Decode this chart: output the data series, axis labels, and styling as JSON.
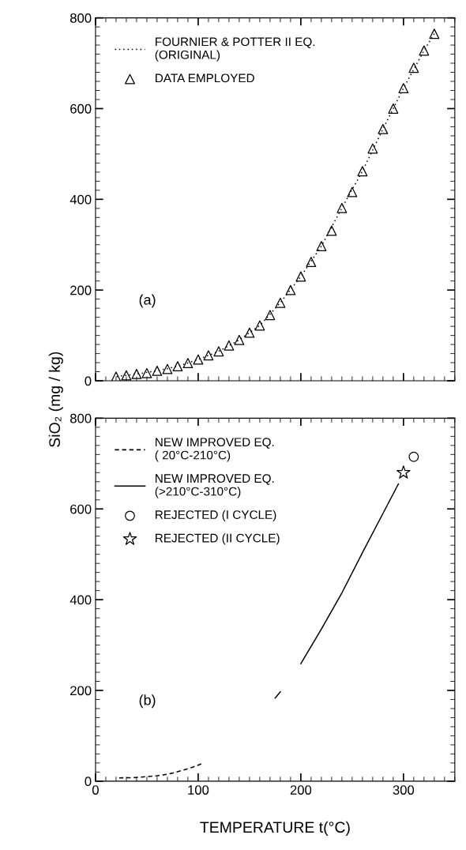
{
  "chart_data": [
    {
      "type": "line",
      "ylabel": "SiO₂ (mg / kg)",
      "xlim": [
        0,
        350
      ],
      "ylim": [
        0,
        800
      ],
      "xticks": [
        0,
        100,
        200,
        300
      ],
      "yticks": [
        0,
        200,
        400,
        600,
        800
      ],
      "tick_labels": "y",
      "legend": "top left",
      "grid": false,
      "annotations": [
        "(a)"
      ],
      "series": [
        {
          "name": "FOURNIER & POTTER II EQ.\n(ORIGINAL)",
          "color": "#000000",
          "line_style": "dotted",
          "marker": "none",
          "x": [
            20,
            40,
            60,
            80,
            100,
            120,
            140,
            160,
            180,
            200,
            220,
            240,
            260,
            280,
            300,
            320,
            330
          ],
          "values": [
            9,
            15,
            22,
            32,
            47,
            65,
            90,
            122,
            172,
            230,
            297,
            381,
            462,
            555,
            645,
            728,
            765
          ]
        },
        {
          "name": "DATA EMPLOYED",
          "type": "scatter",
          "color": "#000000",
          "marker": "triangle",
          "x": [
            20,
            30,
            40,
            50,
            60,
            70,
            80,
            90,
            100,
            110,
            120,
            130,
            140,
            150,
            160,
            170,
            180,
            190,
            200,
            210,
            220,
            230,
            240,
            250,
            260,
            270,
            280,
            290,
            300,
            310,
            320,
            330
          ],
          "values": [
            9,
            12,
            15,
            17,
            22,
            26,
            32,
            39,
            47,
            56,
            65,
            78,
            90,
            106,
            122,
            145,
            172,
            200,
            230,
            262,
            297,
            331,
            381,
            416,
            462,
            512,
            555,
            600,
            645,
            690,
            728,
            765
          ]
        }
      ]
    },
    {
      "type": "line",
      "xlabel": "TEMPERATURE t(°C)",
      "xlim": [
        0,
        350
      ],
      "ylim": [
        0,
        800
      ],
      "xticks": [
        0,
        100,
        200,
        300
      ],
      "yticks": [
        0,
        200,
        400,
        600,
        800
      ],
      "legend": "top left",
      "grid": false,
      "annotations": [
        "(b)"
      ],
      "series": [
        {
          "name": "NEW IMPROVED EQ.\n( 20°C-210°C)",
          "color": "#000000",
          "line_style": "dashed",
          "marker": "none",
          "x": [
            20,
            40,
            60,
            72,
            85,
            95,
            103
          ],
          "values": [
            7,
            8,
            12,
            16,
            24,
            31,
            38
          ]
        },
        {
          "name": "NEW IMPROVED EQ.\n(>210°C-310°C)",
          "color": "#000000",
          "line_style": "solid",
          "marker": "none",
          "x": [
            175,
            180,
            190,
            200,
            220,
            240,
            261,
            280,
            295
          ],
          "values": [
            183,
            197,
            null,
            259,
            335,
            415,
            508,
            590,
            655
          ]
        },
        {
          "name": "REJECTED (I CYCLE)",
          "type": "scatter",
          "color": "#000000",
          "marker": "circle",
          "x": [
            310
          ],
          "values": [
            715
          ]
        },
        {
          "name": "REJECTED (II CYCLE)",
          "type": "scatter",
          "color": "#000000",
          "marker": "star",
          "x": [
            300
          ],
          "values": [
            680
          ]
        }
      ]
    }
  ]
}
